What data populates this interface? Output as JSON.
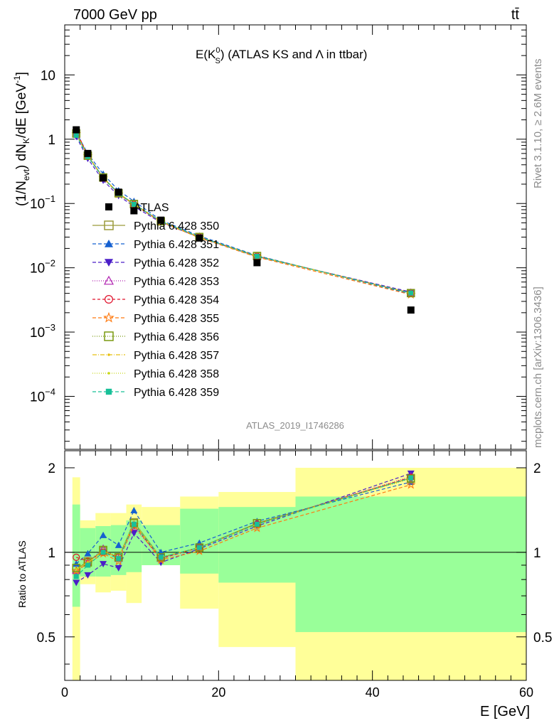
{
  "header": {
    "left": "7000 GeV pp",
    "right": "tt̄",
    "title_main": "E(K",
    "title_sup": "0",
    "title_sub": "S",
    "title_rest": ") (ATLAS KS and Λ in ttbar)"
  },
  "side_text": {
    "rivet": "Rivet 3.1.10, ≥ 2.6M events",
    "mcplots": "mcplots.cern.ch [arXiv:1306.3436]"
  },
  "watermark": "ATLAS_2019_I1746286",
  "colors": {
    "band_outer": "#ffff99",
    "band_inner": "#99ff99",
    "data_marker": "#000000"
  },
  "chart_data": [
    {
      "type": "line",
      "title": "E(K0S) (ATLAS KS and Λ in ttbar)",
      "ylabel": "(1/Nevt) dNK/dE [GeV-1]",
      "ylabel_parts": {
        "a": "(1/N",
        "a_sub": "evt",
        "b": ") dN",
        "b_sub": "K",
        "c": "/dE [GeV",
        "c_sup": "-1",
        "d": "]"
      },
      "xlabel": "E [GeV]",
      "xlim": [
        0,
        60
      ],
      "ylim": [
        1.5e-05,
        60
      ],
      "log_y": true,
      "y_ticks": [
        {
          "v": 10,
          "base": "10",
          "exp": ""
        },
        {
          "v": 1,
          "base": "1",
          "exp": ""
        },
        {
          "v": 0.1,
          "base": "10",
          "exp": "−1"
        },
        {
          "v": 0.01,
          "base": "10",
          "exp": "−2"
        },
        {
          "v": 0.001,
          "base": "10",
          "exp": "−3"
        },
        {
          "v": 0.0001,
          "base": "10",
          "exp": "−4"
        }
      ],
      "x": [
        1.5,
        3,
        5,
        7,
        9,
        12.5,
        17.5,
        25,
        45
      ],
      "atlas": [
        1.4,
        0.6,
        0.25,
        0.15,
        0.077,
        0.055,
        0.029,
        0.012,
        0.0022
      ],
      "mc": [
        1.2,
        0.55,
        0.25,
        0.145,
        0.098,
        0.055,
        0.03,
        0.0145,
        0.004
      ],
      "legend_placement": "middle-left",
      "legend": [
        {
          "name": "ATLAS"
        },
        {
          "name": "Pythia 6.428 350"
        },
        {
          "name": "Pythia 6.428 351"
        },
        {
          "name": "Pythia 6.428 352"
        },
        {
          "name": "Pythia 6.428 353"
        },
        {
          "name": "Pythia 6.428 354"
        },
        {
          "name": "Pythia 6.428 355"
        },
        {
          "name": "Pythia 6.428 356"
        },
        {
          "name": "Pythia 6.428 357"
        },
        {
          "name": "Pythia 6.428 358"
        },
        {
          "name": "Pythia 6.428 359"
        }
      ]
    },
    {
      "type": "line",
      "ylabel": "Ratio to ATLAS",
      "xlabel": "E [GeV]",
      "xlim": [
        0,
        60
      ],
      "ylim": [
        0.35,
        2.3
      ],
      "y_ticks": [
        0.5,
        1,
        2
      ],
      "y_tick_labels": [
        "0.5",
        "1",
        "2"
      ],
      "x_ticks": [
        0,
        20,
        40,
        60
      ],
      "x_tick_labels": [
        "0",
        "20",
        "40",
        "60"
      ],
      "bins": [
        [
          1,
          2
        ],
        [
          2,
          4
        ],
        [
          4,
          6
        ],
        [
          6,
          8
        ],
        [
          8,
          10
        ],
        [
          10,
          15
        ],
        [
          15,
          20
        ],
        [
          20,
          30
        ],
        [
          30,
          60
        ]
      ],
      "band_outer": [
        [
          0.35,
          1.85
        ],
        [
          0.77,
          1.3
        ],
        [
          0.72,
          1.38
        ],
        [
          0.73,
          1.38
        ],
        [
          0.66,
          1.48
        ],
        [
          0.9,
          1.45
        ],
        [
          0.63,
          1.58
        ],
        [
          0.46,
          1.64
        ],
        [
          0.35,
          2.0
        ]
      ],
      "band_inner": [
        [
          0.64,
          1.48
        ],
        [
          0.82,
          1.22
        ],
        [
          0.82,
          1.24
        ],
        [
          0.83,
          1.25
        ],
        [
          0.85,
          1.3
        ],
        [
          0.9,
          1.25
        ],
        [
          0.84,
          1.43
        ],
        [
          0.78,
          1.45
        ],
        [
          0.52,
          1.58
        ]
      ],
      "x": [
        1.5,
        3,
        5,
        7,
        9,
        12.5,
        17.5,
        25,
        45
      ],
      "series": [
        {
          "name": "Pythia 6.428 350",
          "color": "#9a9a3a",
          "marker": "square-open",
          "dash": "",
          "values": [
            0.87,
            0.93,
            1.01,
            0.96,
            1.28,
            0.96,
            1.04,
            1.27,
            1.84
          ]
        },
        {
          "name": "Pythia 6.428 351",
          "color": "#1560d0",
          "marker": "triangle-up",
          "dash": "5,3",
          "values": [
            0.91,
            0.99,
            1.15,
            1.06,
            1.41,
            1.0,
            1.08,
            1.29,
            1.78
          ]
        },
        {
          "name": "Pythia 6.428 352",
          "color": "#4b1ec8",
          "marker": "triangle-down",
          "dash": "5,3",
          "values": [
            0.78,
            0.83,
            0.91,
            0.88,
            1.17,
            0.92,
            1.03,
            1.24,
            1.91
          ]
        },
        {
          "name": "Pythia 6.428 353",
          "color": "#b020b0",
          "marker": "triangle-open",
          "dash": "1,2",
          "values": [
            0.86,
            0.92,
            1.03,
            0.95,
            1.23,
            0.95,
            1.04,
            1.26,
            1.86
          ]
        },
        {
          "name": "Pythia 6.428 354",
          "color": "#e0102a",
          "marker": "circle-open",
          "dash": "4,3",
          "values": [
            0.96,
            0.93,
            1.0,
            0.96,
            1.25,
            0.95,
            1.04,
            1.26,
            1.85
          ]
        },
        {
          "name": "Pythia 6.428 355",
          "color": "#ff7a10",
          "marker": "star-open",
          "dash": "5,3",
          "values": [
            0.86,
            0.91,
            0.99,
            0.93,
            1.25,
            0.94,
            1.01,
            1.22,
            1.74
          ]
        },
        {
          "name": "Pythia 6.428 356",
          "color": "#7a9a10",
          "marker": "square-open",
          "dash": "1,2",
          "values": [
            0.88,
            0.92,
            1.02,
            0.96,
            1.27,
            0.96,
            1.04,
            1.27,
            1.83
          ]
        },
        {
          "name": "Pythia 6.428 357",
          "color": "#e8c010",
          "marker": "dot",
          "dash": "6,2,1,2",
          "values": [
            0.87,
            0.92,
            1.01,
            0.96,
            1.27,
            0.96,
            1.04,
            1.26,
            1.84
          ]
        },
        {
          "name": "Pythia 6.428 358",
          "color": "#c8d818",
          "marker": "dot",
          "dash": "1,2",
          "values": [
            0.87,
            0.92,
            1.01,
            0.96,
            1.27,
            0.96,
            1.04,
            1.26,
            1.84
          ]
        },
        {
          "name": "Pythia 6.428 359",
          "color": "#18c098",
          "marker": "square-filled",
          "dash": "5,3",
          "values": [
            0.82,
            0.9,
            1.0,
            0.95,
            1.26,
            0.96,
            1.04,
            1.26,
            1.84
          ]
        }
      ]
    }
  ]
}
